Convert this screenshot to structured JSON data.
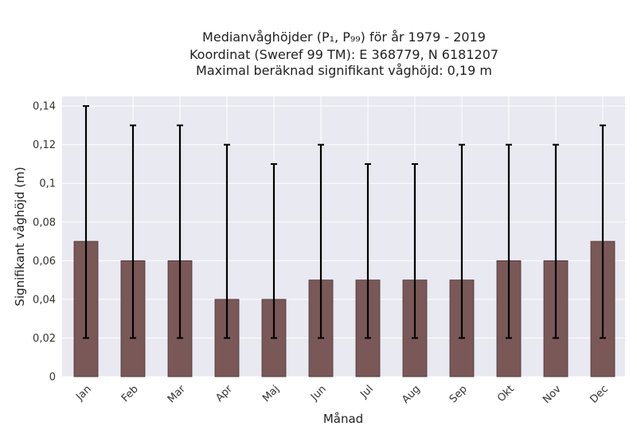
{
  "chart_data": {
    "type": "bar",
    "title_lines": [
      "Medianvåghöjder (P₁, P₉₉) för år 1979 - 2019",
      "Koordinat (Sweref 99 TM): E 368779, N 6181207",
      "Maximal beräknad signifikant våghöjd: 0,19 m"
    ],
    "xlabel": "Månad",
    "ylabel": "Signifikant våghöjd (m)",
    "categories": [
      "Jan",
      "Feb",
      "Mar",
      "Apr",
      "Maj",
      "Jun",
      "Jul",
      "Aug",
      "Sep",
      "Okt",
      "Nov",
      "Dec"
    ],
    "series": [
      {
        "values": [
          0.07,
          0.06,
          0.06,
          0.04,
          0.04,
          0.05,
          0.05,
          0.05,
          0.05,
          0.06,
          0.06,
          0.07
        ],
        "error_low": [
          0.02,
          0.02,
          0.02,
          0.02,
          0.02,
          0.02,
          0.02,
          0.02,
          0.02,
          0.02,
          0.02,
          0.02
        ],
        "error_high": [
          0.14,
          0.13,
          0.13,
          0.12,
          0.11,
          0.12,
          0.11,
          0.11,
          0.12,
          0.12,
          0.12,
          0.13
        ]
      }
    ],
    "ylim": [
      0,
      0.145
    ],
    "yticks": [
      0,
      0.02,
      0.04,
      0.06,
      0.08,
      0.1,
      0.12,
      0.14
    ],
    "ytick_labels": [
      "0",
      "0,02",
      "0,04",
      "0,06",
      "0,08",
      "0,1",
      "0,12",
      "0,14"
    ],
    "grid": true,
    "colors": {
      "bar": "#7a5858",
      "bar_edge": "#4a3535",
      "error": "#000000",
      "plot_bg": "#e9e9f1",
      "grid": "#ffffff"
    }
  }
}
